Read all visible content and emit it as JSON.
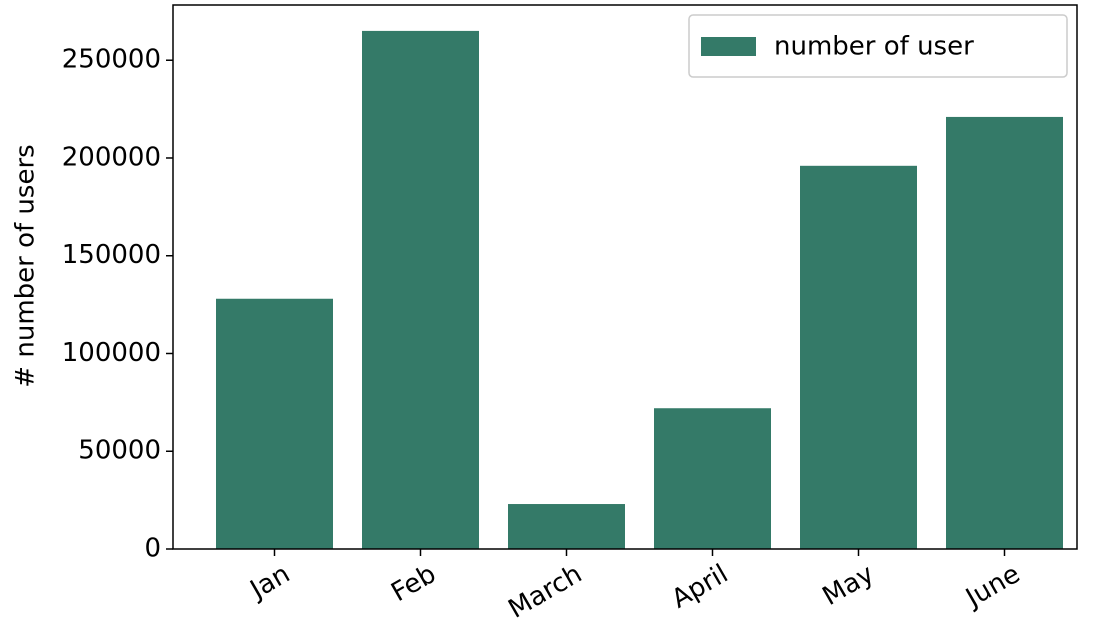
{
  "chart_data": {
    "type": "bar",
    "ylabel": "# number of users",
    "categories": [
      "Jan",
      "Feb",
      "March",
      "April",
      "May",
      "June"
    ],
    "series": [
      {
        "name": "number of user",
        "color": "#347a68",
        "values": [
          128000,
          265000,
          23000,
          72000,
          196000,
          221000
        ]
      }
    ],
    "ylim": [
      0,
      278250
    ],
    "yticks": [
      0,
      50000,
      100000,
      150000,
      200000,
      250000
    ],
    "legend": "upper right"
  }
}
